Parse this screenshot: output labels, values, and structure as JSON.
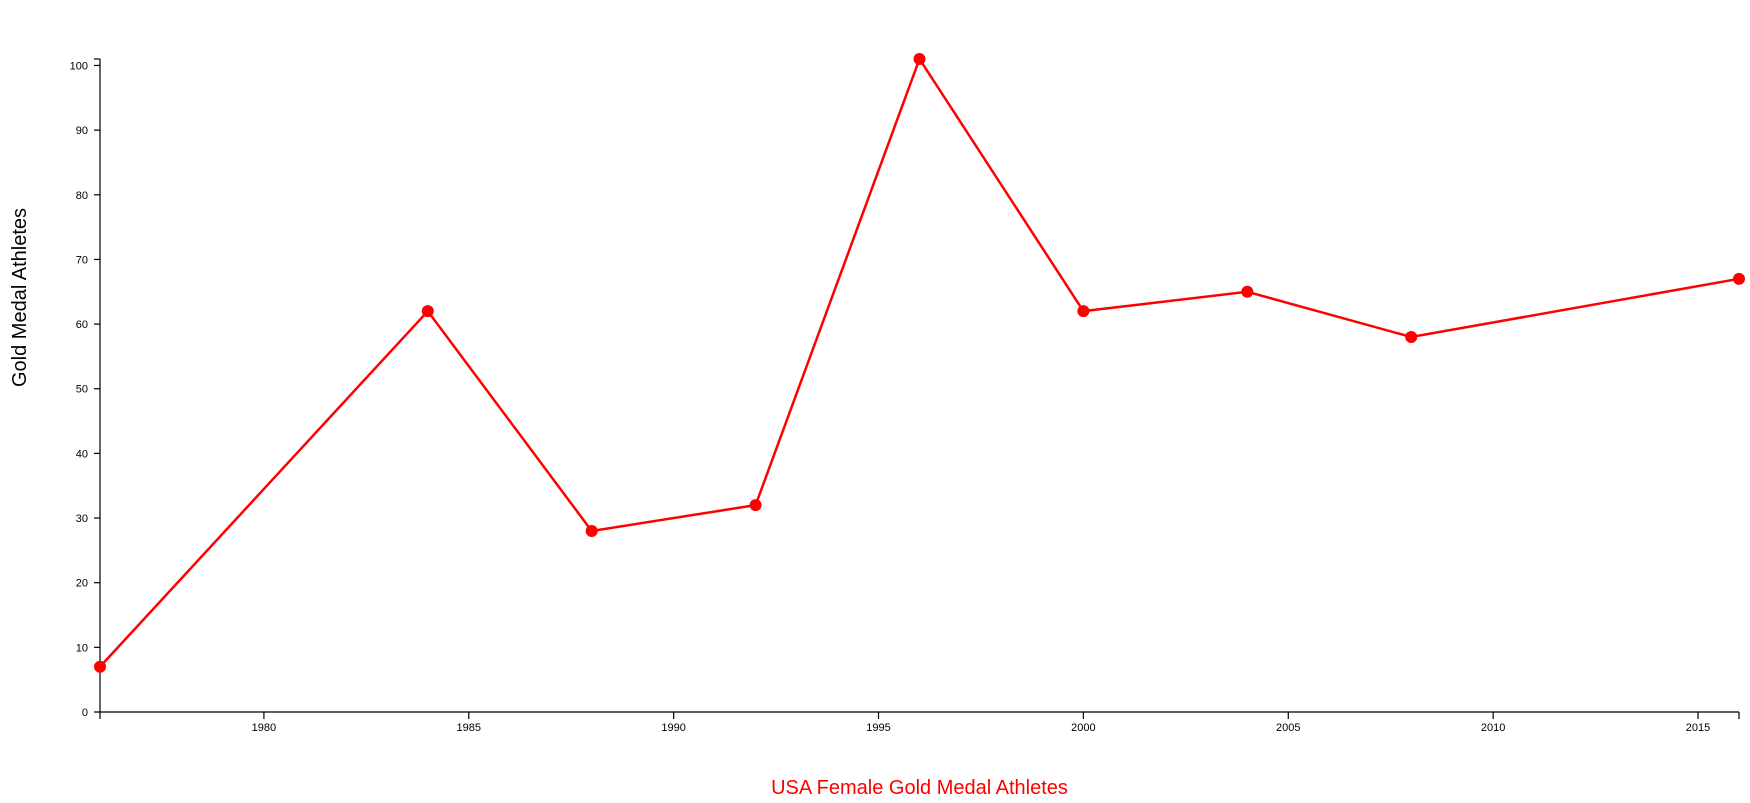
{
  "chart_data": {
    "type": "line",
    "title": "",
    "xlabel": "USA Female Gold Medal Athletes",
    "ylabel": "Gold Medal Athletes",
    "xlim": [
      1976,
      2016
    ],
    "ylim": [
      0,
      101
    ],
    "x_ticks": [
      1980,
      1985,
      1990,
      1995,
      2000,
      2005,
      2010,
      2015
    ],
    "y_ticks": [
      0,
      10,
      20,
      30,
      40,
      50,
      60,
      70,
      80,
      90,
      100
    ],
    "grid": false,
    "legend": "none",
    "series": [
      {
        "color": "#ff0000",
        "x": [
          1976,
          1984,
          1988,
          1992,
          1996,
          2000,
          2004,
          2008,
          2016
        ],
        "y": [
          7,
          62,
          28,
          32,
          101,
          62,
          65,
          58,
          67
        ]
      }
    ]
  },
  "colors": {
    "series": "#ff0000",
    "xlabel": "#ff0000",
    "axis": "#000000"
  }
}
